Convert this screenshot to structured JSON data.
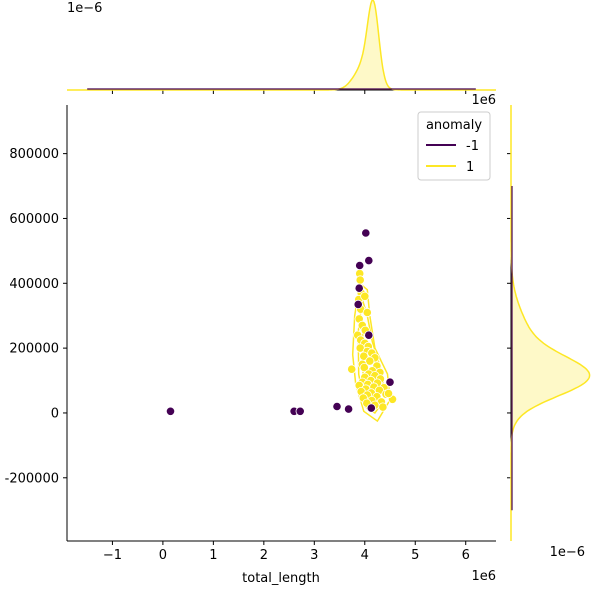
{
  "chart_data": {
    "type": "scatter",
    "subtype": "jointplot-with-kde",
    "xlabel": "total_length",
    "ylabel": "",
    "xlim": [
      -1900000,
      6600000
    ],
    "ylim": [
      -395000,
      950000
    ],
    "x_ticks": [
      -1000000,
      0,
      1000000,
      2000000,
      3000000,
      4000000,
      5000000,
      6000000
    ],
    "x_tick_labels": [
      "−1",
      "0",
      "1",
      "2",
      "3",
      "4",
      "5",
      "6"
    ],
    "x_offset_text": "1e6",
    "y_ticks": [
      -200000,
      0,
      200000,
      400000,
      600000,
      800000
    ],
    "y_tick_labels": [
      "-200000",
      "0",
      "200000",
      "400000",
      "600000",
      "800000"
    ],
    "top_marginal_offset_text": "1e−6",
    "right_marginal_offset_text": "1e−6",
    "right_marginal_top_offset_text": "1e6",
    "legend": {
      "title": "anomaly",
      "placement": "upper right",
      "entries": [
        {
          "label": "-1",
          "color": "#440154"
        },
        {
          "label": "1",
          "color": "#fde725"
        }
      ]
    },
    "series": [
      {
        "name": "-1",
        "color": "#440154",
        "points": [
          [
            150000,
            5000
          ],
          [
            2600000,
            5000
          ],
          [
            2720000,
            5000
          ],
          [
            3450000,
            20000
          ],
          [
            3680000,
            12000
          ],
          [
            4130000,
            15000
          ],
          [
            4500000,
            95000
          ],
          [
            3900000,
            455000
          ],
          [
            3890000,
            385000
          ],
          [
            3870000,
            335000
          ],
          [
            4020000,
            555000
          ],
          [
            4080000,
            470000
          ],
          [
            4080000,
            240000
          ]
        ]
      },
      {
        "name": "1",
        "color": "#fde725",
        "points": [
          [
            3900000,
            430000
          ],
          [
            3910000,
            410000
          ],
          [
            3930000,
            370000
          ],
          [
            3880000,
            350000
          ],
          [
            4000000,
            360000
          ],
          [
            3920000,
            320000
          ],
          [
            4050000,
            310000
          ],
          [
            3890000,
            290000
          ],
          [
            3950000,
            270000
          ],
          [
            4010000,
            255000
          ],
          [
            3860000,
            240000
          ],
          [
            3920000,
            225000
          ],
          [
            4000000,
            215000
          ],
          [
            4070000,
            205000
          ],
          [
            3910000,
            200000
          ],
          [
            4050000,
            190000
          ],
          [
            4140000,
            185000
          ],
          [
            3980000,
            175000
          ],
          [
            4200000,
            170000
          ],
          [
            4100000,
            160000
          ],
          [
            3950000,
            150000
          ],
          [
            4240000,
            145000
          ],
          [
            3990000,
            140000
          ],
          [
            3740000,
            135000
          ],
          [
            4150000,
            130000
          ],
          [
            4300000,
            125000
          ],
          [
            4080000,
            120000
          ],
          [
            4200000,
            115000
          ],
          [
            4000000,
            110000
          ],
          [
            4310000,
            105000
          ],
          [
            4120000,
            100000
          ],
          [
            3950000,
            95000
          ],
          [
            4250000,
            92000
          ],
          [
            4060000,
            88000
          ],
          [
            3890000,
            85000
          ],
          [
            4180000,
            80000
          ],
          [
            4380000,
            78000
          ],
          [
            4020000,
            74000
          ],
          [
            4290000,
            70000
          ],
          [
            3930000,
            66000
          ],
          [
            4130000,
            62000
          ],
          [
            4420000,
            58000
          ],
          [
            4050000,
            55000
          ],
          [
            4240000,
            50000
          ],
          [
            3970000,
            46000
          ],
          [
            4550000,
            42000
          ],
          [
            4140000,
            38000
          ],
          [
            4330000,
            34000
          ],
          [
            4040000,
            30000
          ],
          [
            4200000,
            24000
          ],
          [
            4470000,
            60000
          ],
          [
            4360000,
            18000
          ]
        ]
      }
    ]
  }
}
